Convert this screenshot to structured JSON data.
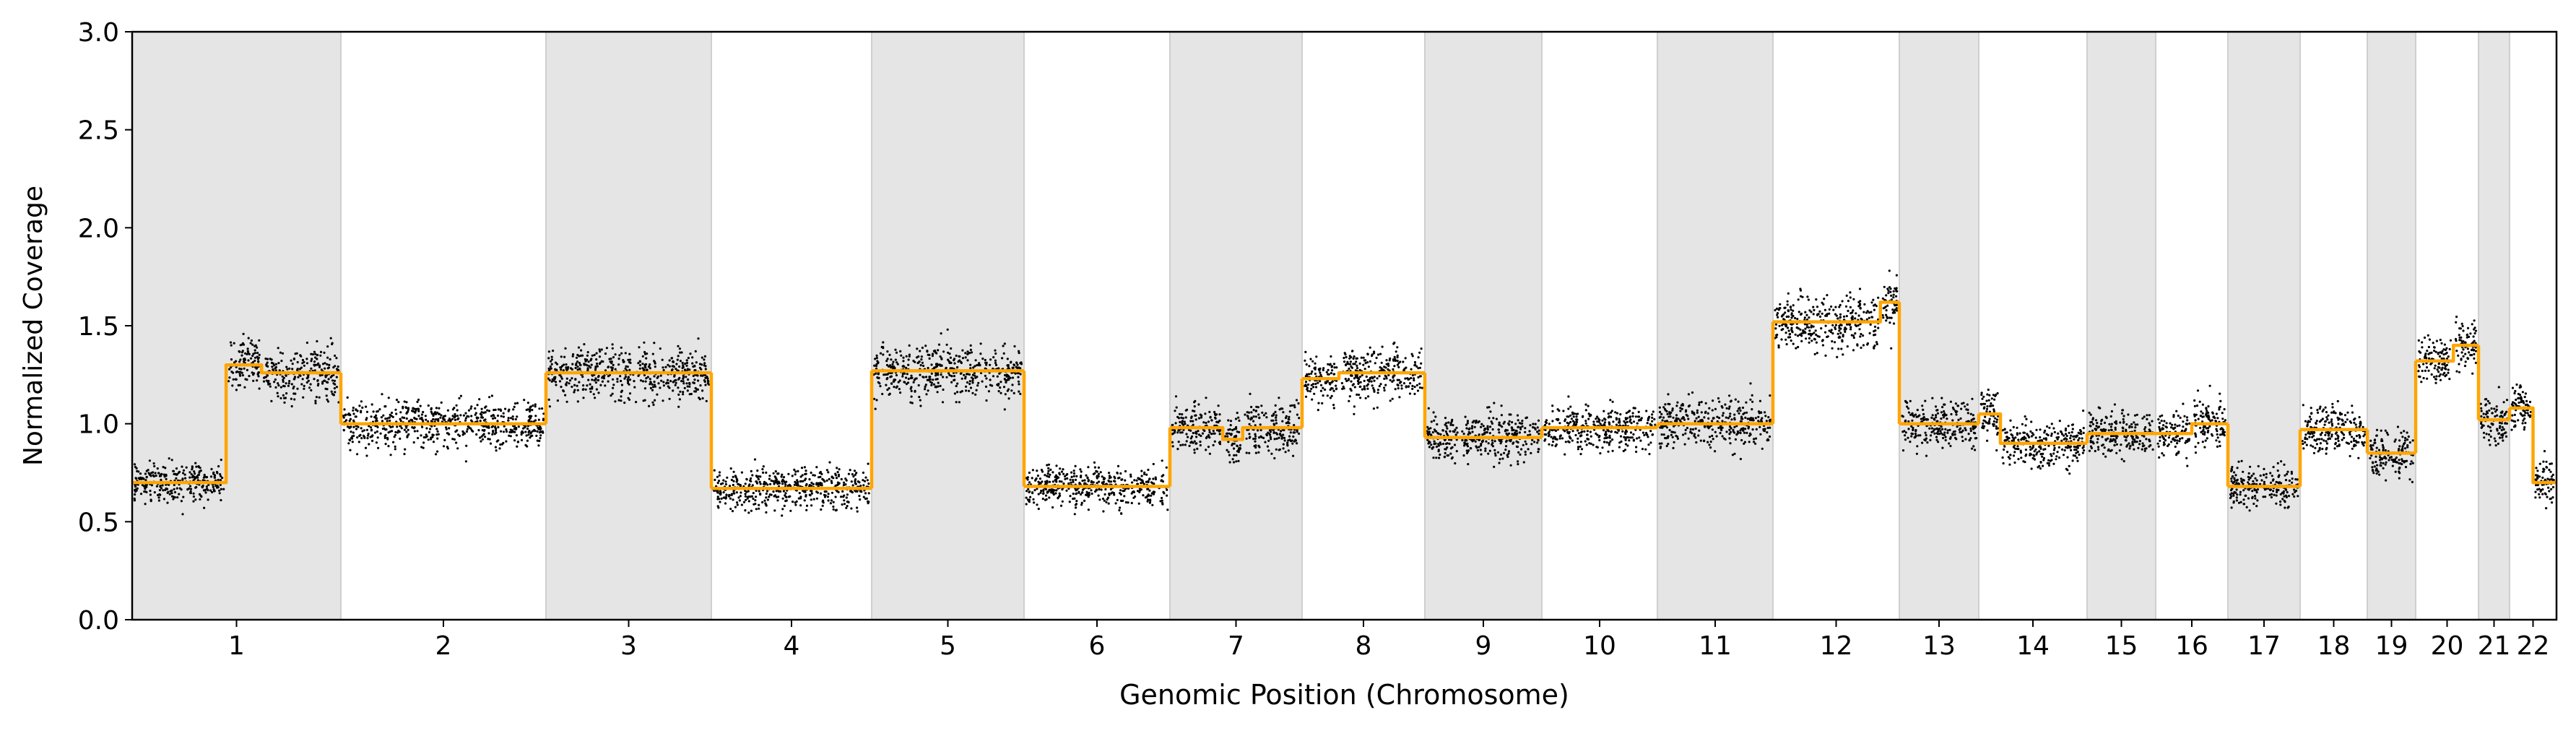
{
  "chart_data": {
    "type": "scatter",
    "title": "",
    "xlabel": "Genomic Position (Chromosome)",
    "ylabel": "Normalized Coverage",
    "ylim": [
      0.0,
      3.0
    ],
    "yticks": [
      "0.0",
      "0.5",
      "1.0",
      "1.5",
      "2.0",
      "2.5",
      "3.0"
    ],
    "grid": false,
    "legend": "none",
    "colors": {
      "points": "#000000",
      "segments": "#FFA500",
      "band": "#E5E5E5"
    },
    "chromosomes": [
      {
        "label": "1",
        "shaded": true,
        "segments": [
          [
            0.0,
            0.45,
            0.7
          ],
          [
            0.45,
            0.62,
            1.3
          ],
          [
            0.62,
            1.0,
            1.26
          ]
        ]
      },
      {
        "label": "2",
        "shaded": false,
        "segments": [
          [
            0.0,
            1.0,
            1.0
          ]
        ]
      },
      {
        "label": "3",
        "shaded": true,
        "segments": [
          [
            0.0,
            1.0,
            1.26
          ]
        ]
      },
      {
        "label": "4",
        "shaded": false,
        "segments": [
          [
            0.0,
            1.0,
            0.67
          ]
        ]
      },
      {
        "label": "5",
        "shaded": true,
        "segments": [
          [
            0.0,
            1.0,
            1.27
          ]
        ]
      },
      {
        "label": "6",
        "shaded": false,
        "segments": [
          [
            0.0,
            1.0,
            0.68
          ]
        ]
      },
      {
        "label": "7",
        "shaded": true,
        "segments": [
          [
            0.0,
            0.4,
            0.98
          ],
          [
            0.4,
            0.55,
            0.92
          ],
          [
            0.55,
            1.0,
            0.98
          ]
        ]
      },
      {
        "label": "8",
        "shaded": false,
        "segments": [
          [
            0.0,
            0.3,
            1.23
          ],
          [
            0.3,
            1.0,
            1.26
          ]
        ]
      },
      {
        "label": "9",
        "shaded": true,
        "segments": [
          [
            0.0,
            0.3,
            0.93
          ],
          [
            0.3,
            1.0,
            0.93
          ]
        ]
      },
      {
        "label": "10",
        "shaded": false,
        "segments": [
          [
            0.0,
            1.0,
            0.98
          ]
        ]
      },
      {
        "label": "11",
        "shaded": true,
        "segments": [
          [
            0.0,
            1.0,
            1.0
          ]
        ]
      },
      {
        "label": "12",
        "shaded": false,
        "segments": [
          [
            0.0,
            0.85,
            1.52
          ],
          [
            0.85,
            1.0,
            1.62
          ]
        ]
      },
      {
        "label": "13",
        "shaded": true,
        "segments": [
          [
            0.0,
            1.0,
            1.0
          ]
        ]
      },
      {
        "label": "14",
        "shaded": false,
        "segments": [
          [
            0.0,
            0.2,
            1.05
          ],
          [
            0.2,
            1.0,
            0.9
          ]
        ]
      },
      {
        "label": "15",
        "shaded": true,
        "segments": [
          [
            0.0,
            1.0,
            0.95
          ]
        ]
      },
      {
        "label": "16",
        "shaded": false,
        "segments": [
          [
            0.0,
            0.5,
            0.95
          ],
          [
            0.5,
            1.0,
            1.0
          ]
        ]
      },
      {
        "label": "17",
        "shaded": true,
        "segments": [
          [
            0.0,
            1.0,
            0.68
          ]
        ]
      },
      {
        "label": "18",
        "shaded": false,
        "segments": [
          [
            0.0,
            1.0,
            0.97
          ]
        ]
      },
      {
        "label": "19",
        "shaded": true,
        "segments": [
          [
            0.0,
            1.0,
            0.85
          ]
        ]
      },
      {
        "label": "20",
        "shaded": false,
        "segments": [
          [
            0.0,
            0.6,
            1.32
          ],
          [
            0.6,
            1.0,
            1.4
          ]
        ]
      },
      {
        "label": "21",
        "shaded": true,
        "segments": [
          [
            0.0,
            1.0,
            1.02
          ]
        ]
      },
      {
        "label": "22",
        "shaded": false,
        "segments": [
          [
            0.0,
            0.5,
            1.08
          ],
          [
            0.5,
            1.0,
            0.7
          ]
        ]
      }
    ]
  }
}
